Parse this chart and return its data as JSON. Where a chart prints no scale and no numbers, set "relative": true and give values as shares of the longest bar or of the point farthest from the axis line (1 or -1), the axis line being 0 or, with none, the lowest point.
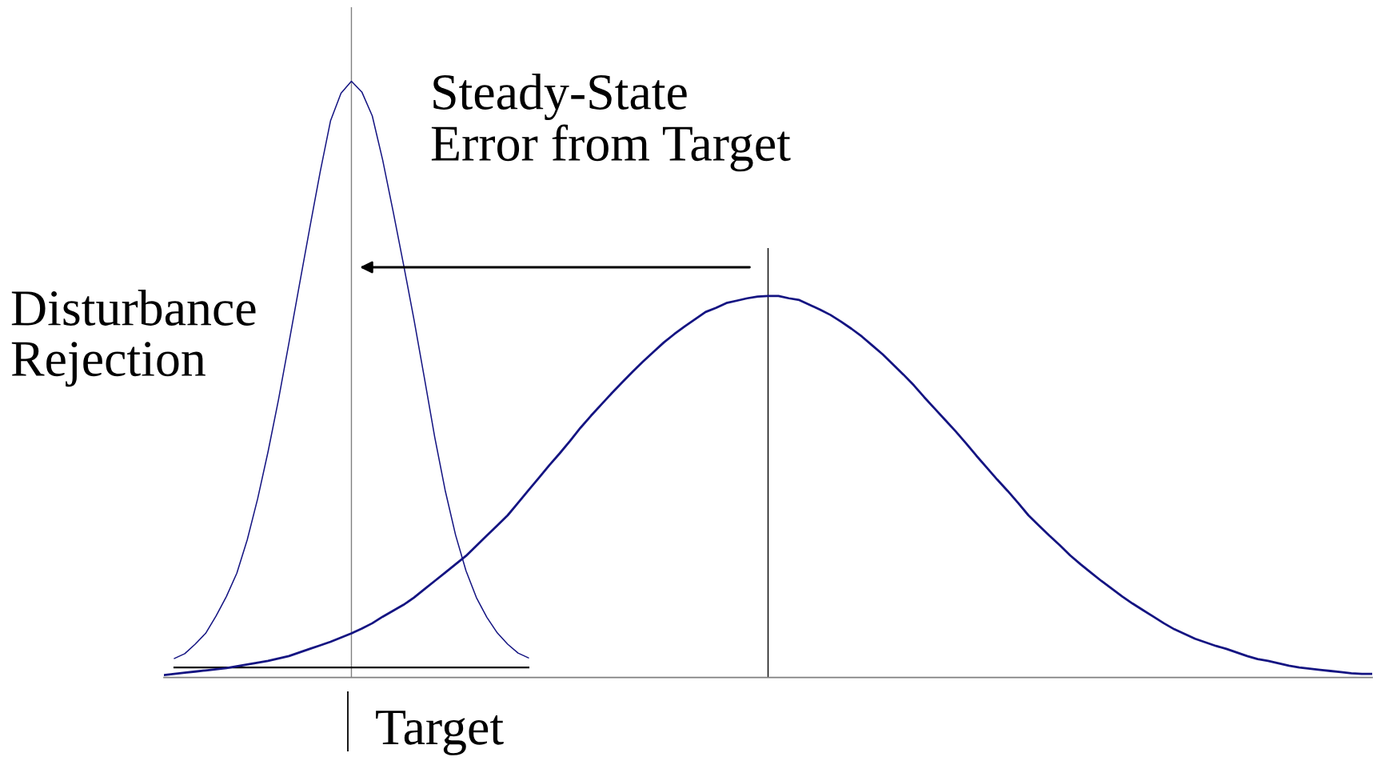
{
  "chart_data": {
    "type": "line",
    "relative": true,
    "categories": [
      null,
      null,
      null,
      null,
      null,
      null,
      null,
      null,
      null,
      null,
      null,
      null,
      null,
      null,
      null,
      null,
      null,
      null,
      null,
      null,
      null,
      null,
      null,
      null,
      null,
      null,
      null,
      null,
      null,
      null,
      null,
      null,
      null,
      null,
      null,
      null,
      null,
      null,
      null,
      null,
      null,
      null,
      null,
      null,
      null,
      null,
      null,
      null,
      null,
      null,
      null,
      null,
      null,
      null,
      null,
      null,
      null,
      null,
      null,
      null,
      null,
      null,
      null,
      null,
      null,
      null,
      null,
      null,
      null,
      null,
      null,
      null,
      null,
      null,
      null,
      null,
      null,
      null,
      null,
      null,
      null,
      null,
      null,
      null,
      null,
      null,
      null,
      null,
      null,
      null,
      null,
      null,
      null,
      null,
      null,
      null,
      null,
      null,
      null,
      null,
      null,
      null,
      null,
      null,
      null,
      null,
      null,
      null,
      null,
      null,
      null,
      null,
      null,
      null,
      null,
      null,
      null
    ],
    "series": [
      {
        "color": "#141482",
        "values": [
          null,
          0.032,
          0.04,
          0.056,
          0.074,
          0.103,
          0.136,
          0.175,
          0.231,
          0.3,
          0.379,
          0.466,
          0.561,
          0.658,
          0.754,
          0.848,
          0.934,
          0.98,
          1.0,
          0.982,
          0.942,
          0.868,
          0.782,
          0.693,
          0.601,
          0.503,
          0.403,
          0.314,
          0.239,
          0.179,
          0.134,
          0.101,
          0.075,
          0.056,
          0.041,
          0.033,
          null,
          null,
          null,
          null,
          null,
          null,
          null,
          null,
          null,
          null,
          null,
          null,
          null,
          null,
          null,
          null,
          null,
          null,
          null,
          null,
          null,
          null,
          null,
          null,
          null,
          null,
          null,
          null,
          null,
          null,
          null,
          null,
          null,
          null,
          null,
          null,
          null,
          null,
          null,
          null,
          null,
          null,
          null,
          null,
          null,
          null,
          null,
          null,
          null,
          null,
          null,
          null,
          null,
          null,
          null,
          null,
          null,
          null,
          null,
          null,
          null,
          null,
          null,
          null,
          null,
          null,
          null,
          null,
          null,
          null,
          null,
          null,
          null,
          null,
          null,
          null,
          null,
          null,
          null,
          null,
          null
        ]
      },
      {
        "color": "#141482",
        "values": [
          0.004,
          0.006,
          0.008,
          0.01,
          0.012,
          0.014,
          0.016,
          0.019,
          0.022,
          0.025,
          0.028,
          0.032,
          0.036,
          0.042,
          0.048,
          0.054,
          0.06,
          0.067,
          0.074,
          0.082,
          0.091,
          0.102,
          0.112,
          0.122,
          0.134,
          0.148,
          0.162,
          0.176,
          0.19,
          0.204,
          0.221,
          0.238,
          0.255,
          0.272,
          0.293,
          0.314,
          0.335,
          0.356,
          0.376,
          0.397,
          0.419,
          0.439,
          0.458,
          0.477,
          0.495,
          0.513,
          0.53,
          0.546,
          0.562,
          0.576,
          0.589,
          0.601,
          0.613,
          0.62,
          0.628,
          0.632,
          0.636,
          0.639,
          0.64,
          0.64,
          0.636,
          0.633,
          0.625,
          0.617,
          0.608,
          0.597,
          0.585,
          0.572,
          0.557,
          0.542,
          0.525,
          0.508,
          0.49,
          0.47,
          0.451,
          0.432,
          0.413,
          0.393,
          0.372,
          0.352,
          0.332,
          0.313,
          0.293,
          0.272,
          0.255,
          0.238,
          0.222,
          0.205,
          0.19,
          0.176,
          0.162,
          0.149,
          0.136,
          0.124,
          0.113,
          0.102,
          0.091,
          0.081,
          0.073,
          0.065,
          0.059,
          0.053,
          0.048,
          0.042,
          0.036,
          0.031,
          0.028,
          0.024,
          0.02,
          0.017,
          0.015,
          0.013,
          0.011,
          0.009,
          0.007,
          0.006,
          0.006
        ]
      }
    ],
    "ref_lines": [
      {
        "axis": "y",
        "value": 0.017,
        "color": "#000000"
      }
    ],
    "annotations": [
      "Steady-State\nError from Target",
      "Disturbance\nRejection",
      "Target"
    ]
  }
}
